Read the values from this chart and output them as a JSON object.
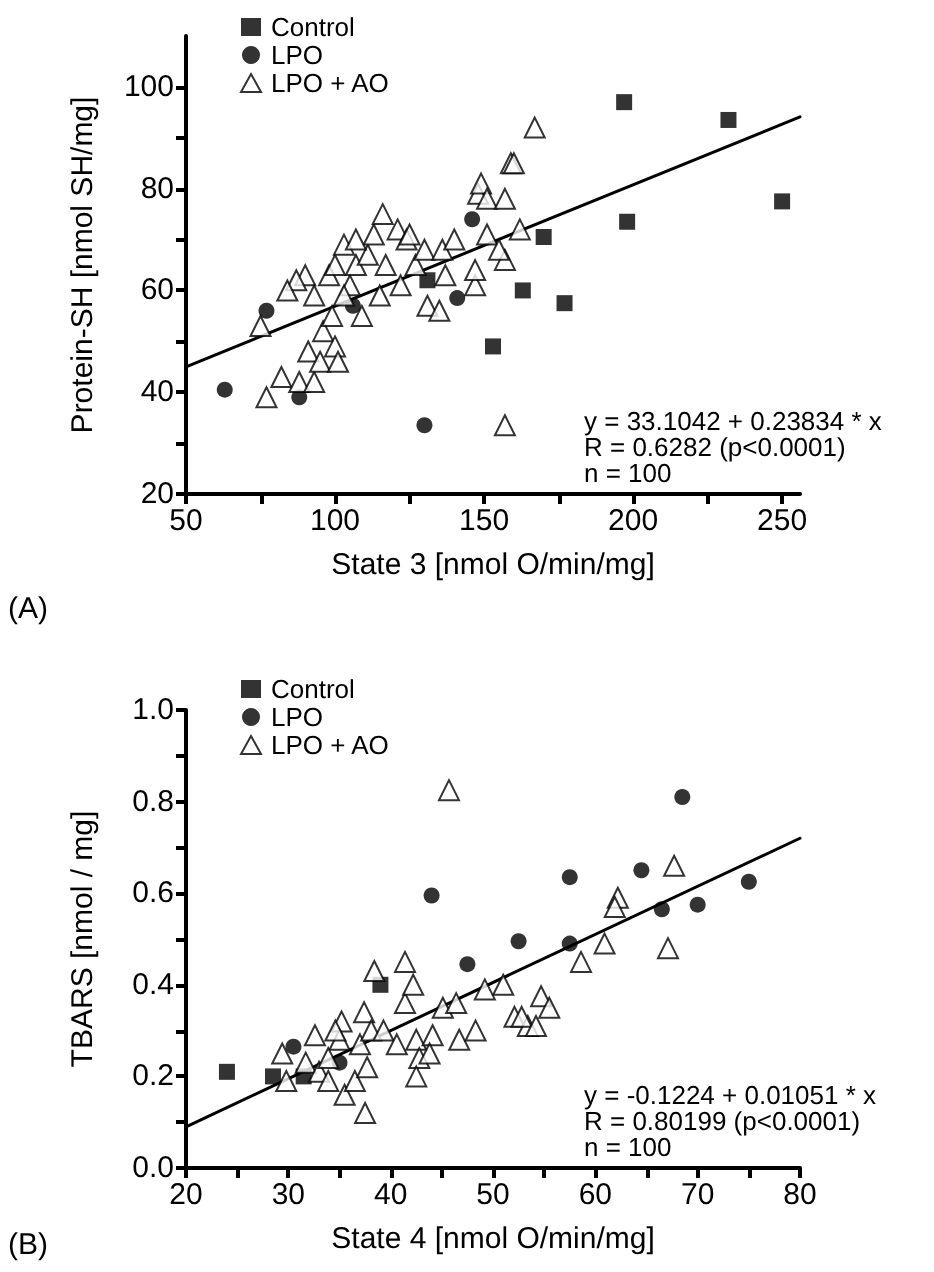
{
  "chart_data": [
    {
      "type": "scatter",
      "xlabel": "State 3 [nmol O/min/mg]",
      "ylabel": "Protein-SH [nmol SH/mg]",
      "xlim": [
        50,
        256
      ],
      "ylim": [
        20,
        110
      ],
      "xticks": [
        50,
        {
          "value": 75,
          "label": null
        },
        100,
        {
          "value": 125,
          "label": null
        },
        150,
        {
          "value": 175,
          "label": null
        },
        200,
        {
          "value": 225,
          "label": null
        },
        250
      ],
      "yticks": [
        20,
        {
          "value": 30,
          "label": null
        },
        40,
        {
          "value": 50,
          "label": null
        },
        60,
        {
          "value": 70,
          "label": null
        },
        80,
        {
          "value": 90,
          "label": null
        },
        100
      ],
      "grid": false,
      "legend": "top left",
      "annotations": [
        "(A)",
        "y = 33.1042 + 0.23834 * x",
        "R = 0.6282 (p<0.0001)",
        "n = 100"
      ],
      "series": [
        {
          "name": "Control",
          "color": "#000000",
          "marker": "square",
          "x": [
            197,
            232,
            250,
            198,
            170,
            163,
            177,
            153,
            131
          ],
          "values": [
            97,
            93.5,
            77.5,
            73.5,
            70.5,
            60,
            57.5,
            49,
            62
          ]
        },
        {
          "name": "LPO",
          "color": "#000000",
          "marker": "circle",
          "x": [
            63,
            77,
            88,
            106,
            130,
            141,
            146
          ],
          "values": [
            40.5,
            56,
            39,
            57,
            33.5,
            58.5,
            74
          ]
        },
        {
          "name": "LPO + AO",
          "color": "#000000",
          "marker": "triangle",
          "x": [
            75,
            77,
            82,
            89,
            90,
            88,
            93,
            91,
            95,
            93,
            96,
            99,
            100,
            101,
            98,
            100,
            103,
            105,
            107,
            109,
            111,
            113,
            116,
            115,
            117,
            121,
            122,
            124,
            127,
            130,
            131,
            135,
            136,
            137,
            140,
            146,
            147,
            147,
            148,
            149,
            151,
            151,
            157,
            157,
            157,
            159,
            160,
            162,
            167,
            87,
            84,
            103,
            125,
            107,
            155
          ],
          "values": [
            53,
            39,
            43,
            null,
            63,
            42,
            42,
            48,
            46,
            59,
            52,
            55,
            49,
            46,
            63,
            65,
            69,
            61,
            65,
            55,
            67,
            71,
            75,
            59,
            65,
            72,
            61,
            70,
            65,
            68,
            57,
            56,
            68,
            63,
            70,
            null,
            61,
            64,
            79,
            81,
            78,
            71,
            78,
            66,
            33.5,
            85,
            85,
            72,
            92,
            62,
            60,
            59,
            71,
            70,
            68
          ]
        },
        {
          "type": "line",
          "color": "#000000",
          "marker": "none",
          "line_style": "solid",
          "x": [
            50,
            256
          ],
          "values": [
            45,
            94.1
          ]
        }
      ]
    },
    {
      "type": "scatter",
      "xlabel": "State 4 [nmol O/min/mg]",
      "ylabel": "TBARS [nmol / mg]",
      "xlim": [
        20,
        80
      ],
      "ylim": [
        0,
        1
      ],
      "xticks": [
        20,
        {
          "value": 25,
          "label": null
        },
        30,
        {
          "value": 35,
          "label": null
        },
        40,
        {
          "value": 45,
          "label": null
        },
        50,
        {
          "value": 55,
          "label": null
        },
        60,
        {
          "value": 65,
          "label": null
        },
        70,
        {
          "value": 75,
          "label": null
        },
        80
      ],
      "yticks": [
        {
          "value": 0,
          "label": "0.0"
        },
        {
          "value": 0.1,
          "label": null
        },
        0.2,
        {
          "value": 0.3,
          "label": null
        },
        0.4,
        {
          "value": 0.5,
          "label": null
        },
        0.6,
        {
          "value": 0.7,
          "label": null
        },
        0.8,
        {
          "value": 0.9,
          "label": null
        },
        {
          "value": 1,
          "label": "1.0"
        }
      ],
      "grid": false,
      "legend": "top left",
      "annotations": [
        "(B)",
        "y = -0.1224 + 0.01051 * x",
        "R = 0.80199 (p<0.0001)",
        "n = 100"
      ],
      "series": [
        {
          "name": "Control",
          "color": "#000000",
          "marker": "square",
          "x": [
            24,
            28.5,
            31.5,
            39
          ],
          "values": [
            0.21,
            0.2,
            0.2,
            0.4
          ]
        },
        {
          "name": "LPO",
          "color": "#000000",
          "marker": "circle",
          "x": [
            30.5,
            35,
            44,
            47.5,
            52.5,
            57.5,
            57.5,
            64.5,
            66.5,
            70,
            75,
            68.5
          ],
          "values": [
            0.265,
            0.23,
            0.595,
            0.445,
            0.495,
            0.635,
            0.49,
            0.65,
            0.565,
            0.575,
            0.625,
            0.81
          ]
        },
        {
          "name": "LPO + AO",
          "color": "#000000",
          "marker": "triangle",
          "x": [
            45.7,
            29.8,
            29.4,
            31.7,
            33,
            33.9,
            35.2,
            35,
            35.5,
            36.5,
            37,
            37.4,
            37.7,
            37.5,
            38.4,
            38.1,
            39.3,
            40.6,
            41.4,
            41.4,
            42.2,
            42.5,
            42.8,
            42.5,
            44.1,
            43.8,
            45.1,
            46.4,
            46.7,
            48.3,
            48.6,
            51,
            52.1,
            53.4,
            32.6,
            33.9,
            34.6,
            67.7,
            62.2,
            61.9,
            60.9,
            58.6,
            67.1,
            54.7,
            55.5,
            52.8,
            54.2,
            49.2
          ],
          "values": [
            0.825,
            0.19,
            0.25,
            0.23,
            0.21,
            0.19,
            0.32,
            0.28,
            0.16,
            0.19,
            0.27,
            0.34,
            0.22,
            0.12,
            0.43,
            0.3,
            0.3,
            0.27,
            0.45,
            0.36,
            0.4,
            0.28,
            0.24,
            0.2,
            0.29,
            0.25,
            0.35,
            0.36,
            0.28,
            0.3,
            null,
            0.4,
            0.33,
            0.31,
            0.29,
            0.24,
            0.3,
            0.66,
            0.59,
            0.57,
            0.49,
            0.45,
            0.48,
            0.375,
            0.35,
            0.33,
            0.31,
            0.39
          ]
        },
        {
          "type": "line",
          "color": "#000000",
          "marker": "none",
          "line_style": "solid",
          "x": [
            20,
            80
          ],
          "values": [
            0.09,
            0.72
          ]
        }
      ]
    }
  ]
}
